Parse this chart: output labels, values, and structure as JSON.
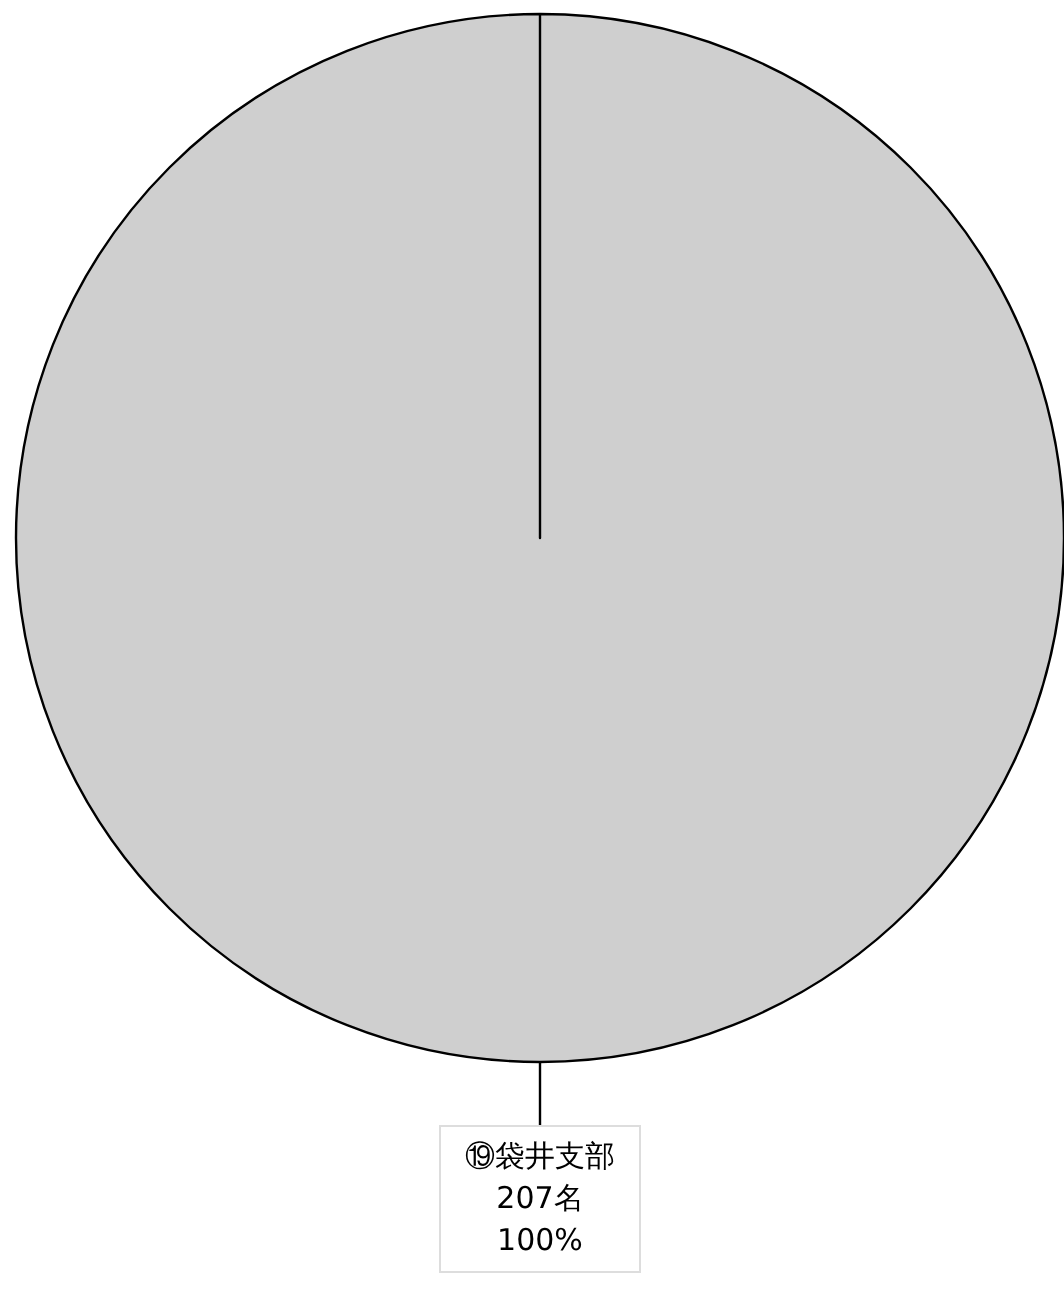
{
  "chart_data": {
    "type": "pie",
    "categories": [
      "⑲袋井支部"
    ],
    "values": [
      207
    ],
    "value_labels": [
      "207名\n100%"
    ],
    "colors": [
      "#cfcfcf"
    ]
  }
}
